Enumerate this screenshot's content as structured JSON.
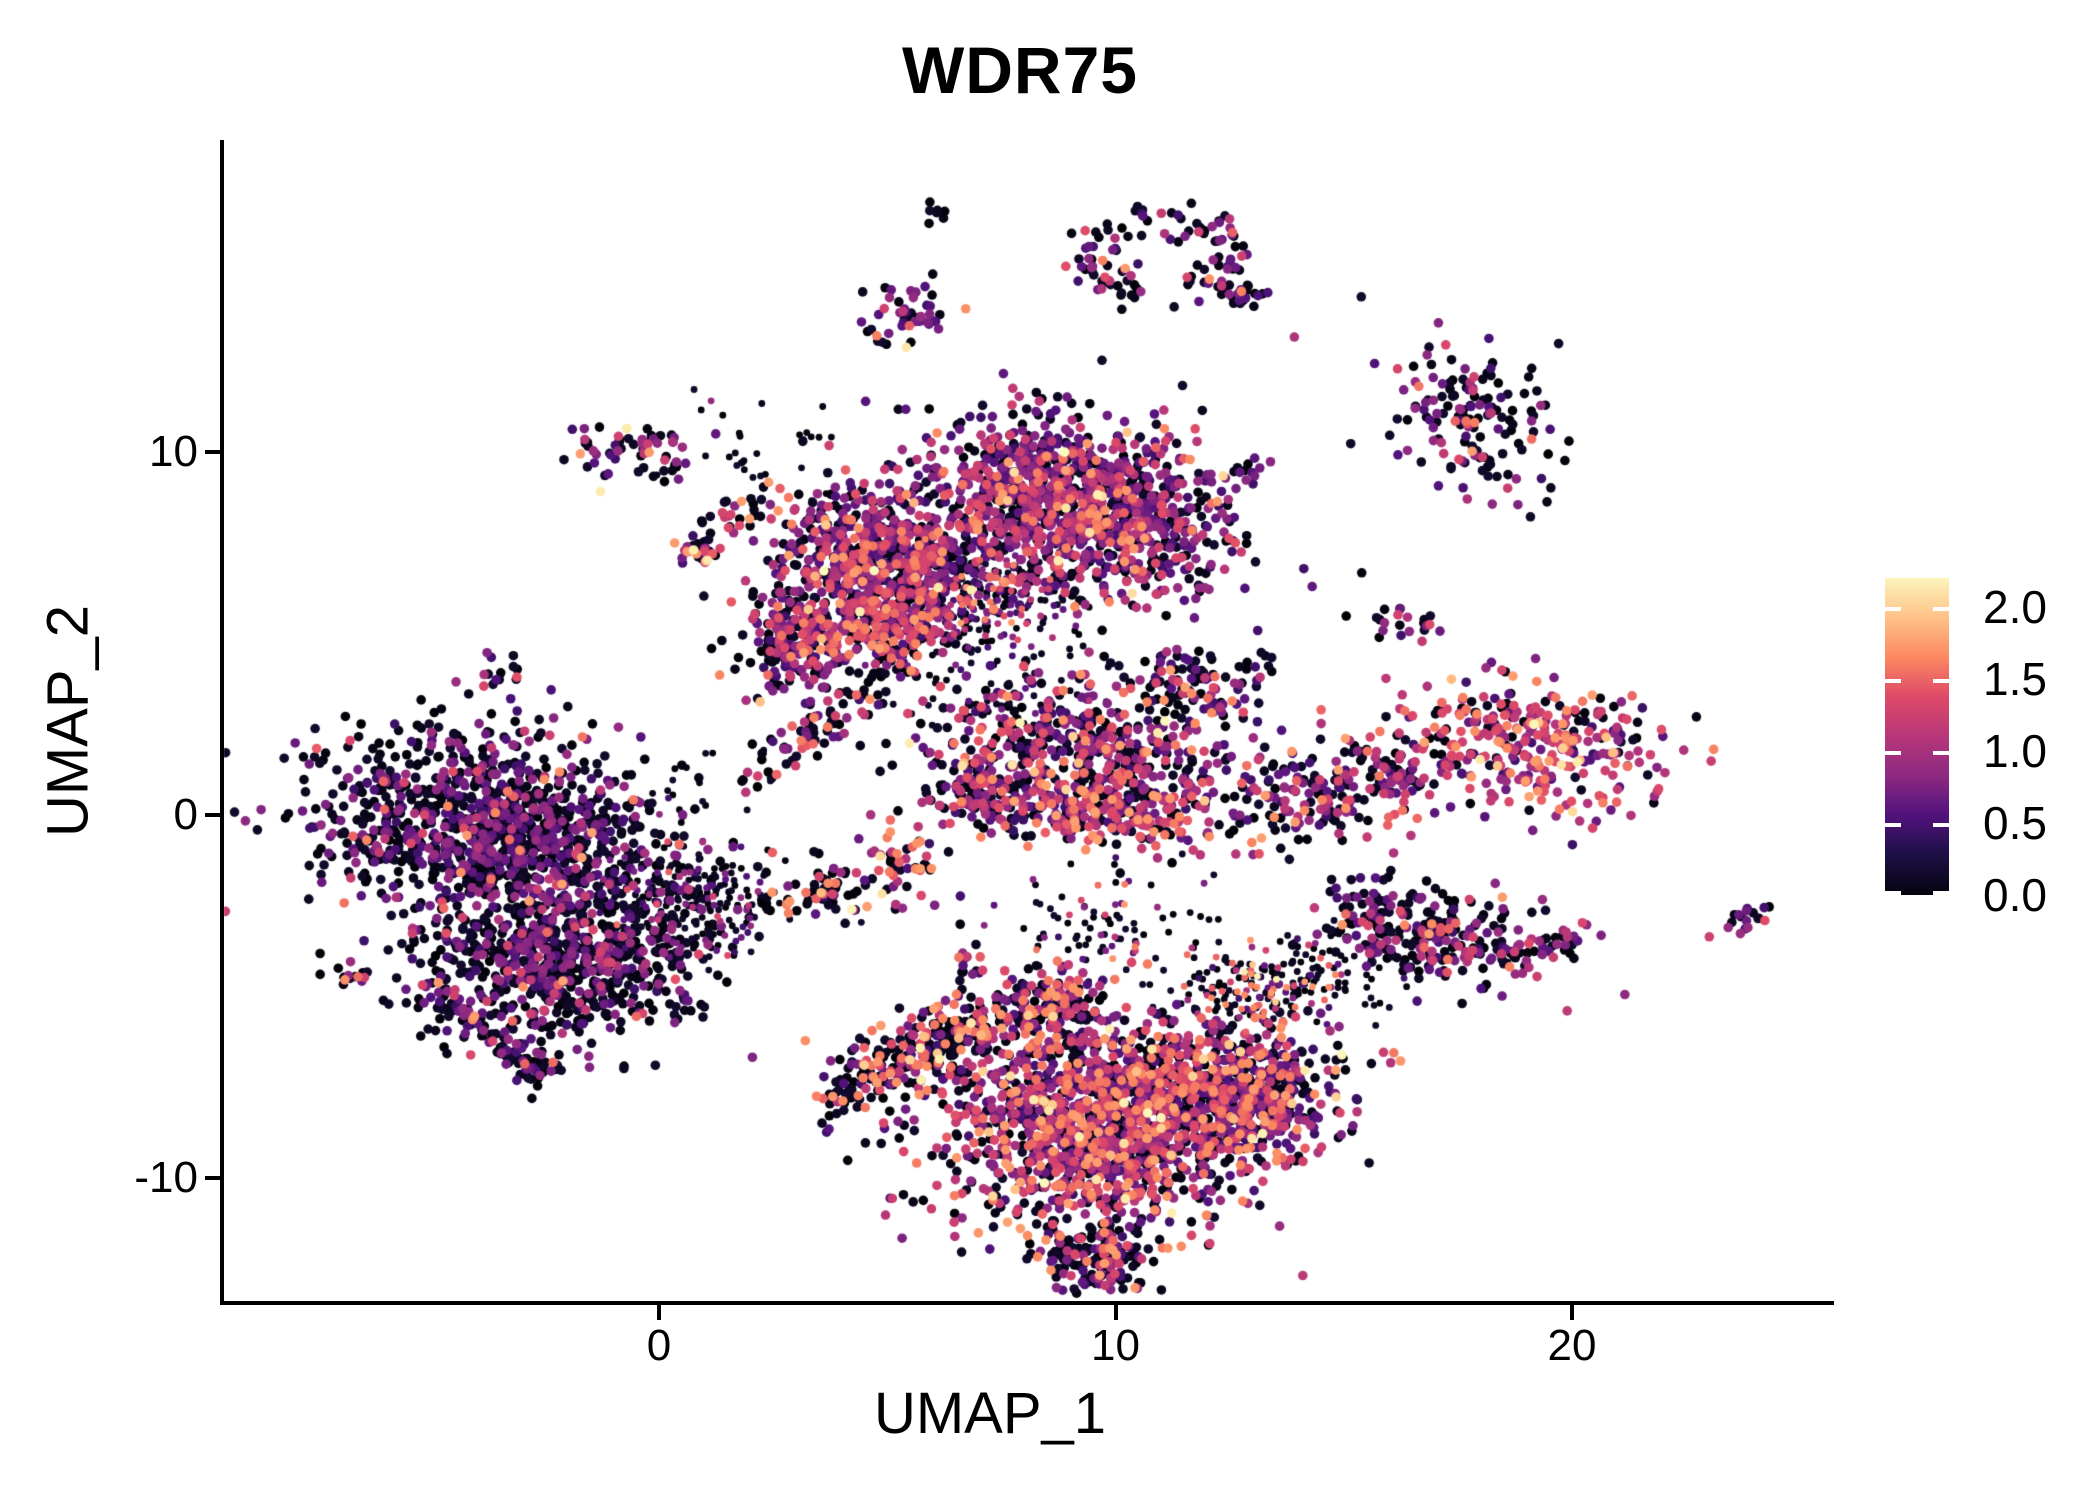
{
  "title": "WDR75",
  "axes": {
    "x_label": "UMAP_1",
    "y_label": "UMAP_2",
    "x_ticks": [
      {
        "label": "0",
        "value": 0
      },
      {
        "label": "10",
        "value": 10
      },
      {
        "label": "20",
        "value": 20
      }
    ],
    "y_ticks": [
      {
        "label": "10",
        "value": 10
      },
      {
        "label": "0",
        "value": 0
      },
      {
        "label": "-10",
        "value": -10
      }
    ]
  },
  "legend": {
    "ticks": [
      {
        "label": "2.0",
        "value": 2.0
      },
      {
        "label": "1.5",
        "value": 1.5
      },
      {
        "label": "1.0",
        "value": 1.0
      },
      {
        "label": "0.5",
        "value": 0.5
      },
      {
        "label": "0.0",
        "value": 0.0
      }
    ],
    "bar_min": 0,
    "bar_max": 2.2,
    "colormap": "magma"
  },
  "colors": {
    "background": "#ffffff",
    "axis": "#000000",
    "magma_anchors": [
      [
        0.0,
        "#000004"
      ],
      [
        0.125,
        "#1c1044"
      ],
      [
        0.25,
        "#51127c"
      ],
      [
        0.375,
        "#8c2981"
      ],
      [
        0.5,
        "#b73779"
      ],
      [
        0.625,
        "#de4968"
      ],
      [
        0.75,
        "#fb8861"
      ],
      [
        0.875,
        "#fec287"
      ],
      [
        1.0,
        "#fcfdbf"
      ]
    ]
  },
  "chart_data": {
    "type": "scatter",
    "title": "WDR75",
    "xlabel": "UMAP_1",
    "ylabel": "UMAP_2",
    "xlim": [
      -9.6,
      25.7
    ],
    "ylim": [
      -13.4,
      18.6
    ],
    "x_ticks": [
      0,
      10,
      20
    ],
    "y_ticks": [
      10,
      0,
      -10
    ],
    "grid": false,
    "legend_position": "right",
    "color_scale": {
      "variable": "expression",
      "min": 0.0,
      "max": 2.2,
      "ticks": [
        0.0,
        0.5,
        1.0,
        1.5,
        2.0
      ],
      "colormap": "magma"
    },
    "value_bands": {
      "black": [
        0.0,
        0.18
      ],
      "purple": [
        0.42,
        0.92
      ],
      "magenta": [
        0.98,
        1.42
      ],
      "salmon": [
        1.45,
        1.78
      ],
      "yellow": [
        1.85,
        2.2
      ]
    },
    "clusters": [
      {
        "name": "top-dot-pair",
        "type": "gauss",
        "cx": 6.11,
        "cy": 16.53,
        "sx": 0.18,
        "sy": 0.22,
        "rot": 0,
        "n": 7,
        "w": [
          0.7,
          0.3,
          0,
          0,
          0
        ]
      },
      {
        "name": "top-hook-ring",
        "type": "arc",
        "cx": 11.0,
        "cy": 15.45,
        "rx": 1.55,
        "ry": 1.05,
        "a0": -70,
        "a1": 255,
        "jit": 0.26,
        "n": 115,
        "w": [
          0.55,
          0.3,
          0.1,
          0.05,
          0
        ]
      },
      {
        "name": "top-hook-tail",
        "type": "line",
        "x1": 12.3,
        "y1": 14.5,
        "x2": 13.3,
        "y2": 14.1,
        "jit": 0.18,
        "n": 22,
        "w": [
          0.6,
          0.3,
          0.05,
          0.05,
          0
        ]
      },
      {
        "name": "upper-center-blob",
        "type": "gauss",
        "cx": 5.39,
        "cy": 13.77,
        "sx": 0.5,
        "sy": 0.45,
        "rot": 0,
        "n": 48,
        "w": [
          0.3,
          0.4,
          0.2,
          0.08,
          0.02
        ]
      },
      {
        "name": "upper-right-cluster",
        "type": "gauss",
        "cx": 17.76,
        "cy": 11.1,
        "sx": 0.85,
        "sy": 1.1,
        "rot": 25,
        "n": 150,
        "w": [
          0.45,
          0.33,
          0.15,
          0.07,
          0
        ]
      },
      {
        "name": "small-left-a",
        "type": "gauss",
        "cx": -1.07,
        "cy": 10.0,
        "sx": 0.42,
        "sy": 0.38,
        "rot": 0,
        "n": 32,
        "w": [
          0.38,
          0.34,
          0.15,
          0.1,
          0.03
        ]
      },
      {
        "name": "small-left-b",
        "type": "gauss",
        "cx": 0.07,
        "cy": 10.06,
        "sx": 0.4,
        "sy": 0.35,
        "rot": 0,
        "n": 30,
        "w": [
          0.4,
          0.35,
          0.15,
          0.1,
          0
        ]
      },
      {
        "name": "top-main-lobe",
        "type": "gauss",
        "cx": 9.11,
        "cy": 8.54,
        "sx": 1.65,
        "sy": 1.15,
        "rot": -18,
        "n": 1250,
        "w": [
          0.3,
          0.45,
          0.18,
          0.06,
          0.01
        ]
      },
      {
        "name": "top-left-lobe",
        "type": "gauss",
        "cx": 4.84,
        "cy": 7.02,
        "sx": 1.15,
        "sy": 0.9,
        "rot": -20,
        "n": 700,
        "w": [
          0.36,
          0.38,
          0.18,
          0.07,
          0.01
        ]
      },
      {
        "name": "top-lower-arm",
        "type": "gauss",
        "cx": 3.09,
        "cy": 4.82,
        "sx": 0.7,
        "sy": 0.8,
        "rot": 0,
        "n": 260,
        "w": [
          0.42,
          0.3,
          0.18,
          0.09,
          0.01
        ]
      },
      {
        "name": "top-magenta-patch",
        "type": "gauss",
        "cx": 5.06,
        "cy": 5.23,
        "sx": 0.55,
        "sy": 0.5,
        "rot": 0,
        "n": 130,
        "w": [
          0.22,
          0.25,
          0.35,
          0.17,
          0.01
        ]
      },
      {
        "name": "top-bridge-sparse",
        "type": "gauss",
        "cx": 6.92,
        "cy": 5.92,
        "sx": 1.1,
        "sy": 0.8,
        "rot": 0,
        "n": 240,
        "w": [
          0.5,
          0.27,
          0.15,
          0.08,
          0
        ],
        "sparse": true
      },
      {
        "name": "check-cluster",
        "type": "gauss",
        "cx": 1.95,
        "cy": 8.46,
        "sx": 0.85,
        "sy": 0.22,
        "rot": 35,
        "n": 36,
        "w": [
          0.55,
          0.15,
          0.15,
          0.15,
          0
        ]
      },
      {
        "name": "small-blob-mid-left",
        "type": "gauss",
        "cx": 0.9,
        "cy": 7.3,
        "sx": 0.3,
        "sy": 0.28,
        "rot": 0,
        "n": 24,
        "w": [
          0.35,
          0.3,
          0.15,
          0.12,
          0.08
        ]
      },
      {
        "name": "tiny-left-blob",
        "type": "gauss",
        "cx": -3.37,
        "cy": 3.94,
        "sx": 0.28,
        "sy": 0.3,
        "rot": 0,
        "n": 15,
        "w": [
          0.5,
          0.45,
          0.05,
          0,
          0
        ]
      },
      {
        "name": "comet-streak",
        "type": "line",
        "x1": 2.21,
        "y1": 1.1,
        "x2": 5.39,
        "y2": 4.33,
        "jit": 0.28,
        "n": 95,
        "w": [
          0.6,
          0.18,
          0.1,
          0.12,
          0
        ]
      },
      {
        "name": "center-right-main",
        "type": "gauss",
        "cx": 9.33,
        "cy": 1.65,
        "sx": 1.75,
        "sy": 1.05,
        "rot": -10,
        "n": 560,
        "w": [
          0.4,
          0.32,
          0.19,
          0.08,
          0.01
        ]
      },
      {
        "name": "center-right-band",
        "type": "gauss",
        "cx": 9.66,
        "cy": 0.0,
        "sx": 1.15,
        "sy": 0.4,
        "rot": 0,
        "n": 190,
        "w": [
          0.22,
          0.3,
          0.31,
          0.16,
          0.01
        ]
      },
      {
        "name": "center-right-spout",
        "type": "gauss",
        "cx": 11.63,
        "cy": 3.44,
        "sx": 0.6,
        "sy": 0.5,
        "rot": 0,
        "n": 85,
        "w": [
          0.48,
          0.3,
          0.15,
          0.07,
          0
        ]
      },
      {
        "name": "center-right-hook",
        "type": "gauss",
        "cx": 7.03,
        "cy": 0.69,
        "sx": 0.5,
        "sy": 0.6,
        "rot": 0,
        "n": 100,
        "w": [
          0.48,
          0.3,
          0.16,
          0.06,
          0
        ]
      },
      {
        "name": "tiny-right-of-spout",
        "type": "gauss",
        "cx": 13.06,
        "cy": 3.94,
        "sx": 0.3,
        "sy": 0.2,
        "rot": 30,
        "n": 16,
        "w": [
          0.5,
          0.4,
          0.1,
          0,
          0
        ]
      },
      {
        "name": "tiny-top-lobe-edge",
        "type": "gauss",
        "cx": 12.85,
        "cy": 9.37,
        "sx": 0.2,
        "sy": 0.3,
        "rot": 0,
        "n": 10,
        "w": [
          0.4,
          0.6,
          0,
          0,
          0
        ]
      },
      {
        "name": "mid-sparse-bridge",
        "type": "gauss",
        "cx": 9.66,
        "cy": -3.17,
        "sx": 1.0,
        "sy": 0.8,
        "rot": 0,
        "n": 90,
        "w": [
          0.68,
          0.2,
          0.08,
          0.04,
          0
        ],
        "sparse": true
      },
      {
        "name": "right-wing",
        "type": "gauss",
        "cx": 15.03,
        "cy": 0.69,
        "sx": 1.3,
        "sy": 0.75,
        "rot": 15,
        "n": 220,
        "w": [
          0.44,
          0.3,
          0.15,
          0.11,
          0
        ]
      },
      {
        "name": "bright-right-cluster",
        "type": "gauss",
        "cx": 19.12,
        "cy": 1.98,
        "sx": 1.6,
        "sy": 0.9,
        "rot": -8,
        "n": 330,
        "w": [
          0.17,
          0.27,
          0.36,
          0.17,
          0.03
        ]
      },
      {
        "name": "tiny-chain-mid",
        "type": "gauss",
        "cx": 16.5,
        "cy": 5.3,
        "sx": 0.45,
        "sy": 0.22,
        "rot": -10,
        "n": 22,
        "w": [
          0.5,
          0.35,
          0.15,
          0,
          0
        ]
      },
      {
        "name": "left-main-upper",
        "type": "gauss",
        "cx": -3.7,
        "cy": -0.41,
        "sx": 1.85,
        "sy": 1.3,
        "rot": -15,
        "n": 1150,
        "w": [
          0.6,
          0.33,
          0.05,
          0.02,
          0
        ]
      },
      {
        "name": "left-main-lower",
        "type": "gauss",
        "cx": -2.17,
        "cy": -3.99,
        "sx": 1.55,
        "sy": 1.1,
        "rot": 10,
        "n": 720,
        "w": [
          0.68,
          0.27,
          0.04,
          0.01,
          0
        ]
      },
      {
        "name": "left-right-extension",
        "type": "gauss",
        "cx": 0.68,
        "cy": -2.34,
        "sx": 1.0,
        "sy": 0.8,
        "rot": 0,
        "n": 270,
        "w": [
          0.7,
          0.24,
          0.05,
          0.01,
          0
        ],
        "sparse": true
      },
      {
        "name": "left-tail",
        "type": "line",
        "x1": -5.2,
        "y1": -4.7,
        "x2": -2.3,
        "y2": -7.4,
        "jit": 0.18,
        "n": 80,
        "w": [
          0.55,
          0.38,
          0.03,
          0.04,
          0
        ]
      },
      {
        "name": "left-tail-end-blob",
        "type": "gauss",
        "cx": -2.7,
        "cy": -7.1,
        "sx": 0.3,
        "sy": 0.22,
        "rot": -35,
        "n": 18,
        "w": [
          0.6,
          0.25,
          0,
          0.15,
          0
        ]
      },
      {
        "name": "left-offshoot",
        "type": "gauss",
        "cx": -6.66,
        "cy": -4.41,
        "sx": 0.25,
        "sy": 0.22,
        "rot": 0,
        "n": 13,
        "w": [
          0.65,
          0.2,
          0.05,
          0.1,
          0
        ]
      },
      {
        "name": "tiny-below-left",
        "type": "gauss",
        "cx": 0.72,
        "cy": -5.23,
        "sx": 0.25,
        "sy": 0.2,
        "rot": 0,
        "n": 10,
        "w": [
          0.8,
          0.2,
          0,
          0,
          0
        ]
      },
      {
        "name": "center-bowtie",
        "type": "gauss",
        "cx": 3.42,
        "cy": -2.2,
        "sx": 0.75,
        "sy": 0.5,
        "rot": 0,
        "n": 62,
        "w": [
          0.55,
          0.12,
          0.13,
          0.18,
          0.02
        ]
      },
      {
        "name": "center-red-cluster",
        "type": "gauss",
        "cx": 5.28,
        "cy": -1.24,
        "sx": 0.5,
        "sy": 0.55,
        "rot": 0,
        "n": 52,
        "w": [
          0.33,
          0.2,
          0.2,
          0.24,
          0.03
        ]
      },
      {
        "name": "tiny-pair-below",
        "type": "gauss",
        "cx": 6.7,
        "cy": -3.94,
        "sx": 0.26,
        "sy": 0.3,
        "rot": 0,
        "n": 16,
        "w": [
          0.4,
          0.3,
          0.2,
          0.1,
          0
        ]
      },
      {
        "name": "bottom-left-arm",
        "type": "line",
        "x1": 3.96,
        "y1": -7.58,
        "x2": 7.47,
        "y2": -5.65,
        "jit": 0.5,
        "n": 290,
        "w": [
          0.6,
          0.12,
          0.1,
          0.16,
          0.02
        ]
      },
      {
        "name": "bottom-main",
        "type": "gauss",
        "cx": 9.66,
        "cy": -8.4,
        "sx": 1.8,
        "sy": 1.45,
        "rot": 5,
        "n": 1450,
        "w": [
          0.32,
          0.3,
          0.22,
          0.14,
          0.02
        ]
      },
      {
        "name": "bottom-right-lobe",
        "type": "gauss",
        "cx": 12.51,
        "cy": -7.85,
        "sx": 1.25,
        "sy": 1.0,
        "rot": 0,
        "n": 600,
        "w": [
          0.37,
          0.34,
          0.18,
          0.1,
          0.01
        ]
      },
      {
        "name": "bottom-tip",
        "type": "gauss",
        "cx": 9.55,
        "cy": -12.12,
        "sx": 0.6,
        "sy": 0.5,
        "rot": 0,
        "n": 150,
        "w": [
          0.45,
          0.3,
          0.17,
          0.08,
          0
        ]
      },
      {
        "name": "bottom-topright-sparse",
        "type": "gauss",
        "cx": 13.06,
        "cy": -4.82,
        "sx": 0.9,
        "sy": 0.6,
        "rot": 0,
        "n": 160,
        "w": [
          0.52,
          0.15,
          0.13,
          0.17,
          0.03
        ],
        "sparse": true
      },
      {
        "name": "bottom-upper-bump",
        "type": "gauss",
        "cx": 8.78,
        "cy": -5.1,
        "sx": 0.6,
        "sy": 0.45,
        "rot": 0,
        "n": 120,
        "w": [
          0.4,
          0.25,
          0.2,
          0.15,
          0
        ]
      },
      {
        "name": "starfish-right",
        "type": "gauss",
        "cx": 16.89,
        "cy": -3.25,
        "sx": 1.25,
        "sy": 0.7,
        "rot": -15,
        "n": 260,
        "w": [
          0.52,
          0.3,
          0.11,
          0.07,
          0
        ]
      },
      {
        "name": "starfish-arm",
        "type": "line",
        "x1": 18.64,
        "y1": -3.99,
        "x2": 20.2,
        "y2": -3.3,
        "jit": 0.2,
        "n": 40,
        "w": [
          0.6,
          0.3,
          0.1,
          0,
          0
        ]
      },
      {
        "name": "starfish-bridge",
        "type": "gauss",
        "cx": 14.7,
        "cy": -4.55,
        "sx": 0.9,
        "sy": 0.6,
        "rot": 0,
        "n": 70,
        "w": [
          0.75,
          0.18,
          0.04,
          0.03,
          0
        ],
        "sparse": true
      },
      {
        "name": "far-right-tiny",
        "type": "gauss",
        "cx": 23.68,
        "cy": -2.89,
        "sx": 0.42,
        "sy": 0.18,
        "rot": 40,
        "n": 18,
        "w": [
          0.3,
          0.45,
          0.15,
          0.05,
          0.05
        ]
      },
      {
        "name": "noise-top-left",
        "type": "gauss",
        "cx": 2.21,
        "cy": 10.06,
        "sx": 1.2,
        "sy": 0.9,
        "rot": 0,
        "n": 30,
        "w": [
          0.85,
          0.15,
          0,
          0,
          0
        ],
        "sparse": true
      },
      {
        "name": "noise-below-top",
        "type": "gauss",
        "cx": 7.47,
        "cy": 3.44,
        "sx": 1.1,
        "sy": 0.7,
        "rot": 0,
        "n": 55,
        "w": [
          0.8,
          0.15,
          0.05,
          0,
          0
        ],
        "sparse": true
      },
      {
        "name": "noise-left-mid",
        "type": "gauss",
        "cx": 0.9,
        "cy": 0.69,
        "sx": 0.8,
        "sy": 0.7,
        "rot": 0,
        "n": 22,
        "w": [
          0.85,
          0.15,
          0,
          0,
          0
        ],
        "sparse": true
      }
    ]
  }
}
